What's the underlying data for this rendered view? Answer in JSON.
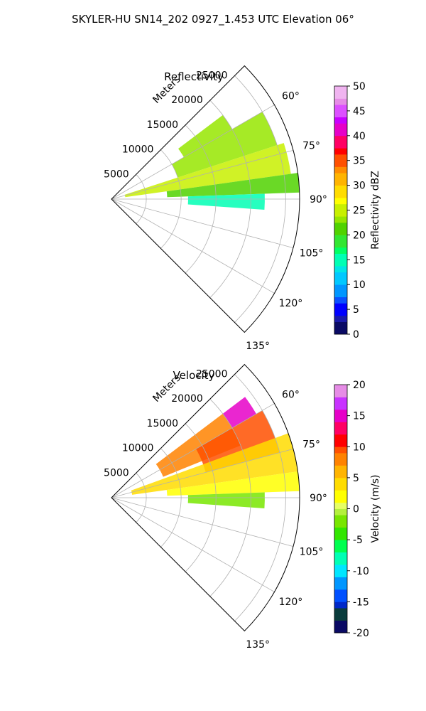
{
  "figure_title": "SKYLER-HU  SN14_202  0927_1.453 UTC Elevation 06°",
  "chart_data": [
    {
      "type": "heatmap",
      "title": "Reflectivity",
      "radial_label": "Meters",
      "radial_ticks": [
        "5000",
        "10000",
        "15000",
        "20000",
        "25000"
      ],
      "azimuth_ticks": [
        "60°",
        "75°",
        "90°",
        "105°",
        "120°",
        "135°"
      ],
      "azimuth_range_deg": [
        45,
        135
      ],
      "range_max_m": 27000,
      "grid": true,
      "colorbar": {
        "label": "Reflectivity dBZ",
        "range": [
          0,
          50
        ],
        "ticks": [
          "0",
          "5",
          "10",
          "15",
          "20",
          "25",
          "30",
          "35",
          "40",
          "45",
          "50"
        ]
      },
      "echo_regions": [
        {
          "az": [
            53,
            60
          ],
          "r": [
            12000,
            20000
          ],
          "value": 22
        },
        {
          "az": [
            60,
            72
          ],
          "r": [
            10000,
            25000
          ],
          "value": 23
        },
        {
          "az": [
            72,
            82
          ],
          "r": [
            2000,
            26000
          ],
          "value": 24
        },
        {
          "az": [
            82,
            88
          ],
          "r": [
            8000,
            27000
          ],
          "value": 20
        },
        {
          "az": [
            88,
            94
          ],
          "r": [
            11000,
            22000
          ],
          "value": 14
        }
      ]
    },
    {
      "type": "heatmap",
      "title": "Velocity",
      "radial_label": "Meters",
      "radial_ticks": [
        "5000",
        "10000",
        "15000",
        "20000",
        "25000"
      ],
      "azimuth_ticks": [
        "60°",
        "75°",
        "90°",
        "105°",
        "120°",
        "135°"
      ],
      "azimuth_range_deg": [
        45,
        135
      ],
      "range_max_m": 27000,
      "grid": true,
      "colorbar": {
        "label": "Velocity (m/s)",
        "range": [
          -20,
          20
        ],
        "ticks": [
          "-20",
          "-15",
          "-10",
          "-5",
          "0",
          "5",
          "10",
          "15",
          "20"
        ]
      },
      "echo_regions": [
        {
          "az": [
            53,
            60
          ],
          "r": [
            20000,
            24000
          ],
          "value": 15
        },
        {
          "az": [
            53,
            68
          ],
          "r": [
            8000,
            20000
          ],
          "value": 8
        },
        {
          "az": [
            60,
            75
          ],
          "r": [
            14000,
            25000
          ],
          "value": 9
        },
        {
          "az": [
            70,
            82
          ],
          "r": [
            3000,
            27000
          ],
          "value": 4
        },
        {
          "az": [
            82,
            88
          ],
          "r": [
            8000,
            27000
          ],
          "value": 2
        },
        {
          "az": [
            88,
            94
          ],
          "r": [
            11000,
            22000
          ],
          "value": -2
        }
      ]
    }
  ]
}
